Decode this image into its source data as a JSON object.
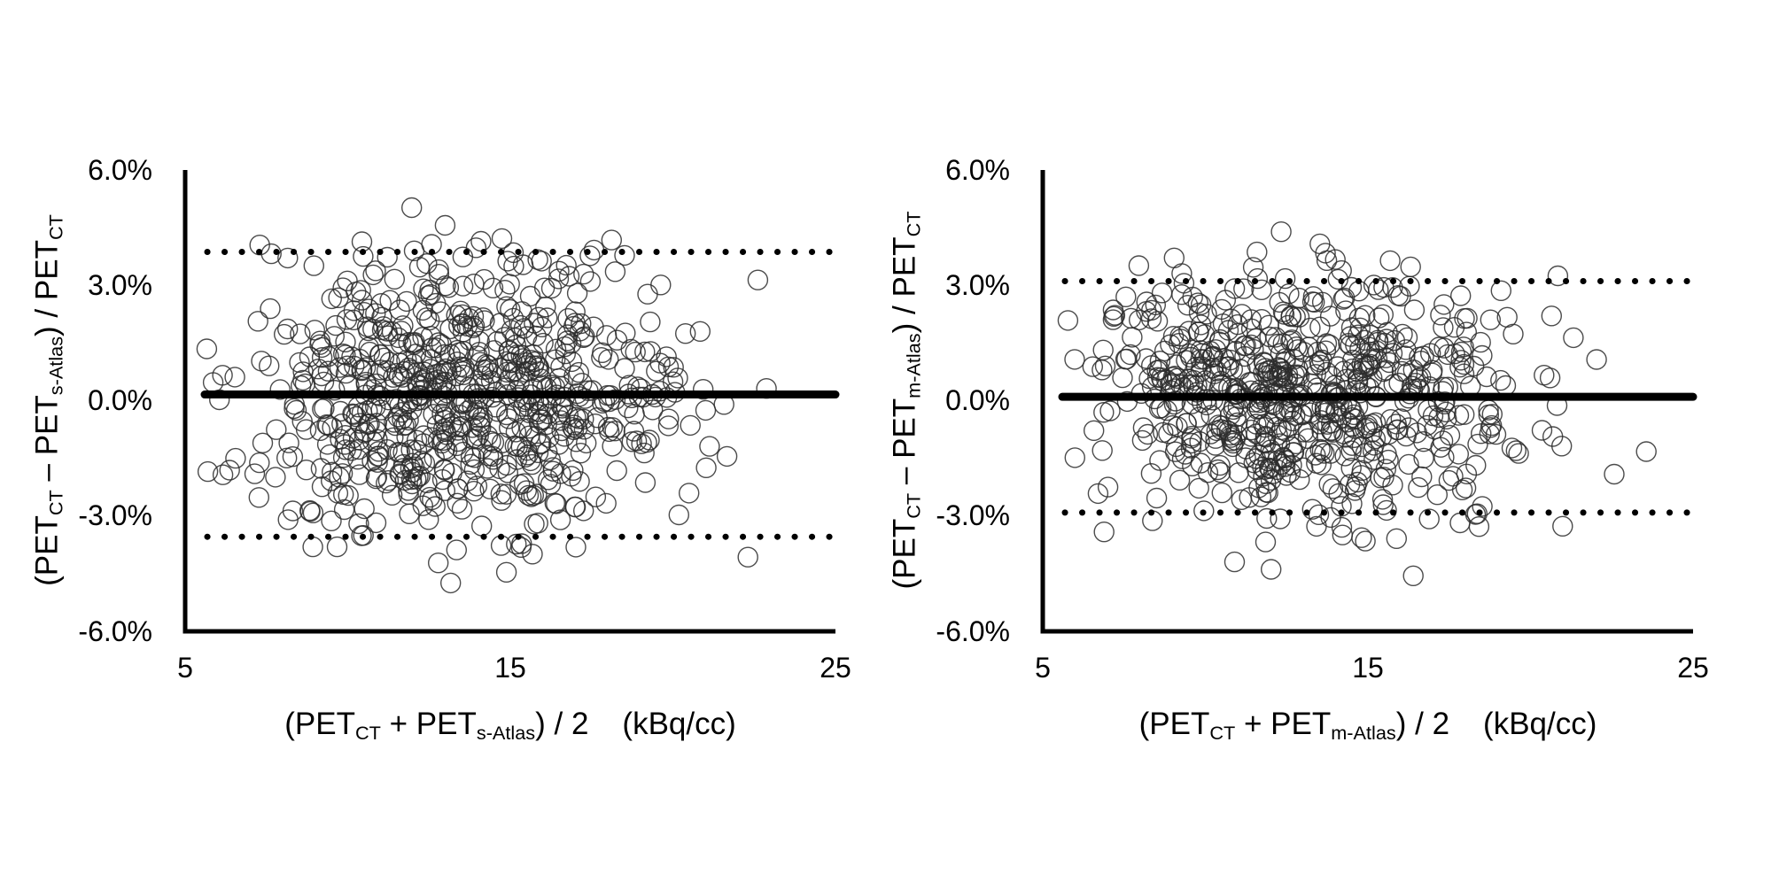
{
  "page": {
    "background": "#ffffff",
    "text_color": "#000000",
    "accent": "#000000"
  },
  "chart_data": [
    {
      "type": "scatter",
      "panel": "left",
      "title": "",
      "ylabel": "(PET_CT – PET_s-Atlas) / PET_CT",
      "xlabel": "(PET_CT + PET_s-Atlas) / 2 (kBq/cc)",
      "ylabel_parts": [
        "(PET",
        "CT",
        " – PET",
        "s-Atlas",
        ") / PET",
        "CT"
      ],
      "xlabel_parts": [
        "(PET",
        "CT",
        " + PET",
        "s-Atlas",
        ") / 2"
      ],
      "x_axis_units": "(kBq/cc)",
      "xlim": [
        5,
        25
      ],
      "ylim": [
        -6,
        6
      ],
      "x_tick_values": [
        5,
        15,
        25
      ],
      "x_tick_labels": [
        "5",
        "15",
        "25"
      ],
      "y_tick_values": [
        6,
        3,
        0,
        -3,
        -6
      ],
      "y_tick_labels": [
        "6.0%",
        "3.0%",
        "0.0%",
        "-3.0%",
        "-6.0%"
      ],
      "grid": false,
      "legend": false,
      "lines": {
        "mean_bias_pct": 0.16,
        "upper_loa_pct": 3.87,
        "lower_loa_pct": -3.54,
        "mean_style": "solid-thick",
        "loa_style": "dotted"
      },
      "scatter_cloud": {
        "n": 730,
        "seed": 42,
        "x_mean": 13.4,
        "x_sd": 3.4,
        "y_mean": 0.15,
        "y_sd": 1.8,
        "x_range": [
          5.6,
          24.1
        ],
        "y_range": [
          -5.0,
          5.1
        ]
      },
      "marker": {
        "shape": "open-circle",
        "radius_px": 11,
        "stroke": "#2b2b2b"
      }
    },
    {
      "type": "scatter",
      "panel": "right",
      "title": "",
      "ylabel": "(PET_CT – PET_m-Atlas) / PET_CT",
      "xlabel": "(PET_CT + PET_m-Atlas) / 2 (kBq/cc)",
      "ylabel_parts": [
        "(PET",
        "CT",
        " – PET",
        "m-Atlas",
        ") / PET",
        "CT"
      ],
      "xlabel_parts": [
        "(PET",
        "CT",
        " + PET",
        "m-Atlas",
        ") / 2"
      ],
      "x_axis_units": "(kBq/cc)",
      "xlim": [
        5,
        25
      ],
      "ylim": [
        -6,
        6
      ],
      "x_tick_values": [
        5,
        15,
        25
      ],
      "x_tick_labels": [
        "5",
        "15",
        "25"
      ],
      "y_tick_values": [
        6,
        3,
        0,
        -3,
        -6
      ],
      "y_tick_labels": [
        "6.0%",
        "3.0%",
        "0.0%",
        "-3.0%",
        "-6.0%"
      ],
      "grid": false,
      "legend": false,
      "lines": {
        "mean_bias_pct": 0.1,
        "upper_loa_pct": 3.11,
        "lower_loa_pct": -2.91,
        "mean_style": "solid-thick",
        "loa_style": "dotted"
      },
      "scatter_cloud": {
        "n": 690,
        "seed": 1337,
        "x_mean": 13.0,
        "x_sd": 3.3,
        "y_mean": 0.05,
        "y_sd": 1.55,
        "x_range": [
          5.6,
          23.7
        ],
        "y_range": [
          -5.3,
          4.55
        ]
      },
      "marker": {
        "shape": "open-circle",
        "radius_px": 11,
        "stroke": "#2b2b2b"
      }
    }
  ]
}
